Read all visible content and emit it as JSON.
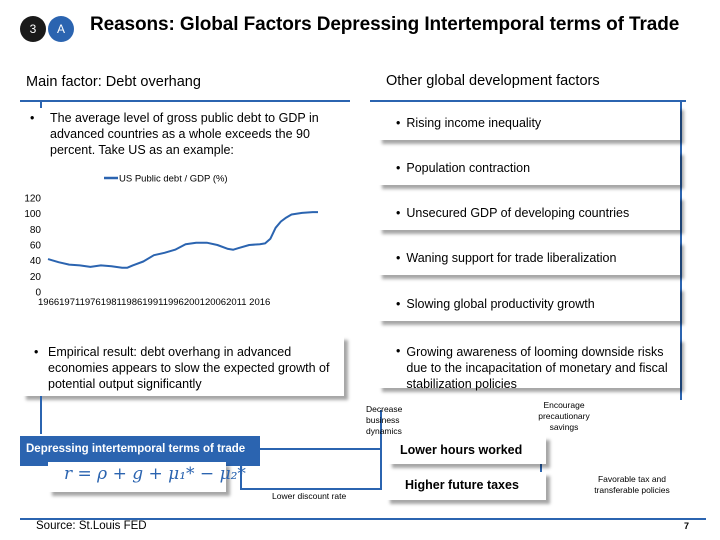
{
  "header": {
    "number_badge": "3",
    "letter_badge": "A",
    "title": "Reasons: Global Factors Depressing Intertemporal terms of Trade"
  },
  "left": {
    "heading": "Main factor: Debt overhang",
    "bullet": "The average level of gross public debt to GDP in advanced countries as a whole exceeds the 90 percent. Take US as an example:",
    "empirical": "Empirical result: debt overhang in advanced economies appears to slow the expected growth of potential output significantly"
  },
  "chart_data": {
    "type": "line",
    "series": [
      {
        "name": "US Public debt / GDP (%)",
        "x": [
          1966,
          1968,
          1970,
          1972,
          1974,
          1976,
          1978,
          1980,
          1981,
          1982,
          1984,
          1986,
          1988,
          1990,
          1992,
          1994,
          1996,
          1998,
          2000,
          2001,
          2002,
          2004,
          2006,
          2007,
          2008,
          2009,
          2010,
          2011,
          2012,
          2014,
          2016,
          2017
        ],
        "y": [
          42,
          38,
          35,
          34,
          32,
          34,
          33,
          31,
          31,
          34,
          39,
          47,
          50,
          54,
          61,
          63,
          63,
          60,
          55,
          54,
          56,
          60,
          61,
          62,
          68,
          82,
          90,
          95,
          99,
          101,
          102,
          102
        ]
      }
    ],
    "legend": "US Public debt / GDP (%)",
    "legend_position": "top",
    "yticks": [
      "120",
      "100",
      "80",
      "60",
      "40",
      "20",
      "0"
    ],
    "xticks": "1966197119761981198619911996200120062011 2016",
    "xlim": [
      1966,
      2017
    ],
    "ylim": [
      0,
      120
    ],
    "grid": false
  },
  "right": {
    "heading": "Other global development factors",
    "items": [
      "Rising income inequality",
      "Population contraction",
      "Unsecured GDP of developing countries",
      "Waning support for trade liberalization",
      "Slowing global productivity growth",
      "Growing awareness of looming downside risks due to the incapacitation of monetary and fiscal stabilization policies"
    ]
  },
  "bottom": {
    "depressing_label": "Depressing intertemporal terms of trade",
    "formula": "r = ρ + g + μ₁* − μ₂*",
    "decrease_business": "Decrease business dynamics",
    "encourage_savings": "Encourage precautionary savings",
    "lower_hours": "Lower hours worked",
    "higher_taxes": "Higher future taxes",
    "favorable_tax": "Favorable tax and transferable policies",
    "lower_discount": "Lower discount rate",
    "source": "Source: St.Louis FED",
    "page_number": "7"
  },
  "colors": {
    "accent_blue": "#2b64b0",
    "badge_dark": "#1a1a1a"
  }
}
